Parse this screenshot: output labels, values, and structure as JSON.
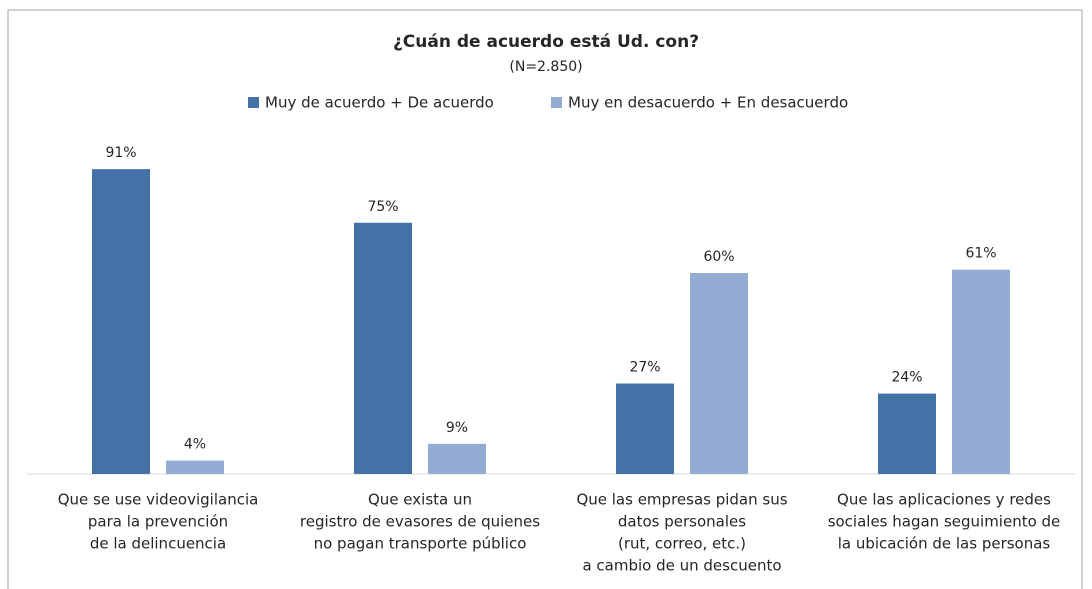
{
  "chart_data": {
    "type": "bar",
    "title": "¿Cuán de acuerdo está Ud. con?",
    "subtitle": "(N=2.850)",
    "categories": [
      [
        "Que se use videovigilancia",
        "para la prevención",
        "de la delincuencia"
      ],
      [
        "Que exista un",
        "registro de evasores de quienes",
        "no pagan transporte público"
      ],
      [
        "Que las empresas pidan sus",
        "datos personales",
        "(rut, correo, etc.)",
        "a cambio de un descuento"
      ],
      [
        "Que las aplicaciones y redes",
        "sociales hagan seguimiento de",
        "la ubicación de las personas"
      ]
    ],
    "series": [
      {
        "name": "Muy de acuerdo + De acuerdo",
        "color": "#4472a6",
        "values": [
          91,
          75,
          27,
          24
        ],
        "value_labels": [
          "91%",
          "75%",
          "27%",
          "24%"
        ]
      },
      {
        "name": "Muy en desacuerdo + En desacuerdo",
        "color": "#94abd4",
        "values": [
          4,
          9,
          60,
          61
        ],
        "value_labels": [
          "4%",
          "9%",
          "60%",
          "61%"
        ]
      }
    ],
    "ylim": [
      0,
      100
    ],
    "legend": "top"
  }
}
